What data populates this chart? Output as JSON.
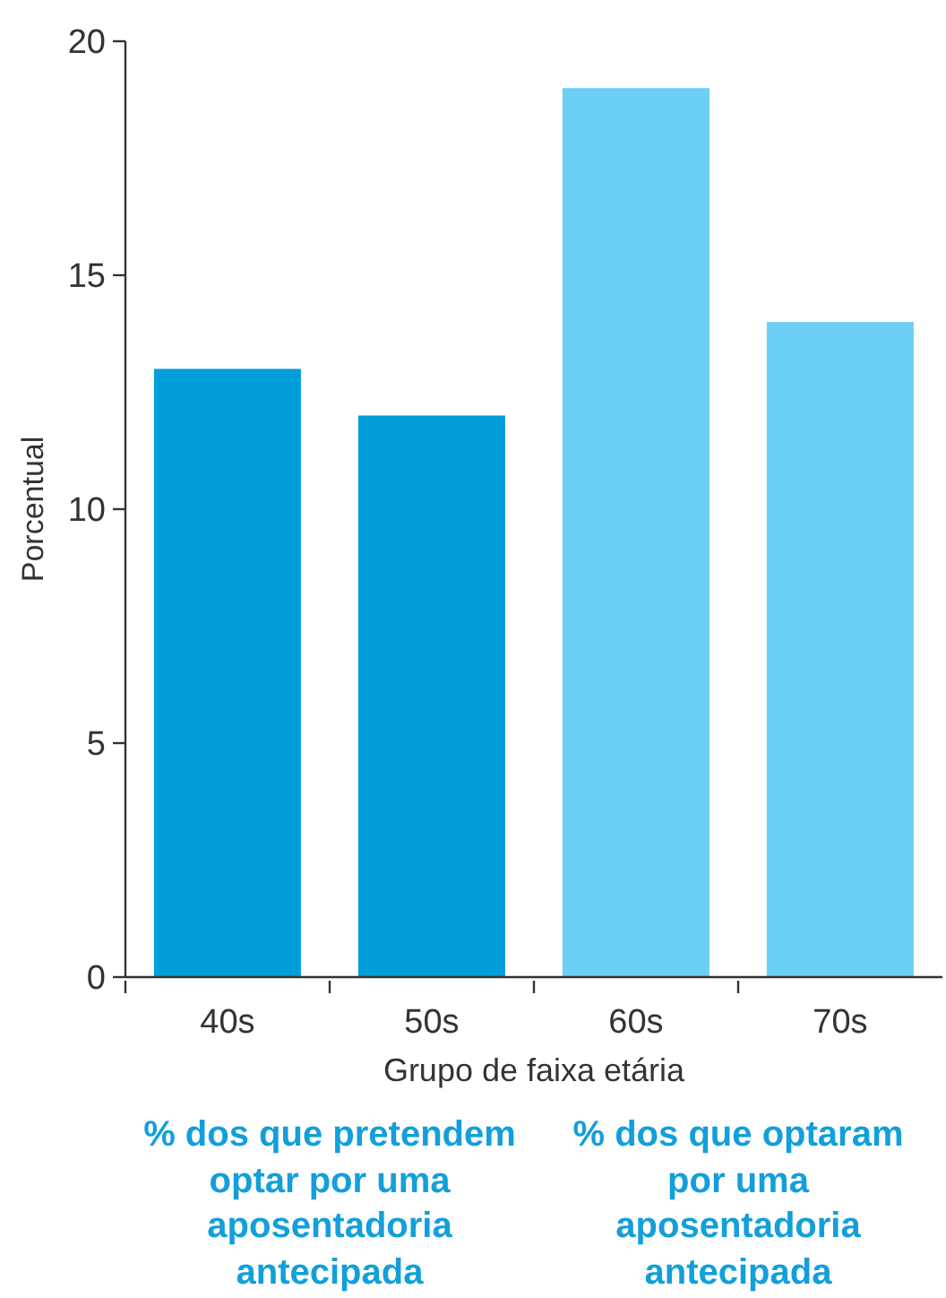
{
  "chart_data": {
    "type": "bar",
    "categories": [
      "40s",
      "50s",
      "60s",
      "70s"
    ],
    "values": [
      13,
      12,
      19,
      14
    ],
    "colors": [
      "#009fda",
      "#009fda",
      "#6bcff6",
      "#6bcff6"
    ],
    "xlabel": "Grupo de faixa etária",
    "ylabel": "Porcentual",
    "ylim": [
      0,
      20
    ],
    "yticks": [
      0,
      5,
      10,
      15,
      20
    ],
    "annotations": [
      "% dos que pretendem optar por uma aposentadoria antecipada",
      "% dos que optaram por uma aposentadoria antecipada"
    ]
  }
}
